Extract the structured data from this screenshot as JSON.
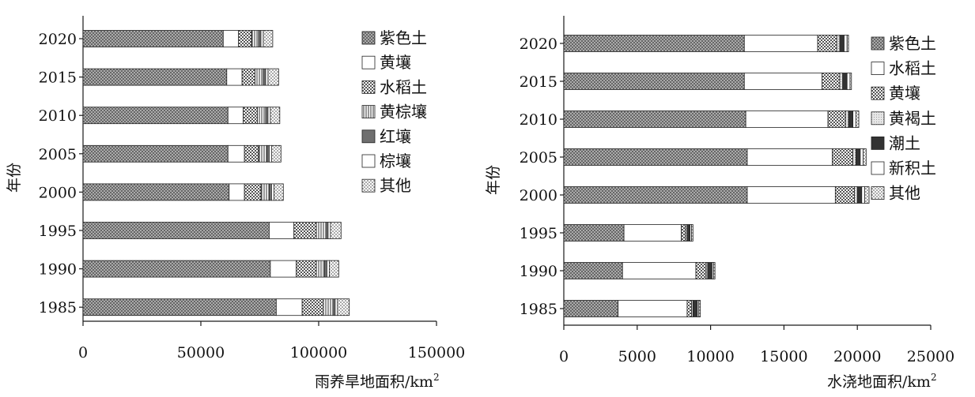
{
  "chart_data": [
    {
      "type": "bar",
      "orientation": "horizontal",
      "stacked": true,
      "categories": [
        "1985",
        "1990",
        "1995",
        "2000",
        "2005",
        "2010",
        "2015",
        "2020"
      ],
      "ylabel": "年份",
      "xlabel": "雨养旱地面积/km²",
      "xlim": [
        0,
        150000
      ],
      "xticks": [
        "0",
        "50000",
        "100000",
        "150000"
      ],
      "legend_position": "right",
      "series": [
        {
          "name": "紫色土",
          "pattern": "crosshatch",
          "values": [
            82000,
            79500,
            79000,
            62000,
            61500,
            61500,
            61000,
            59500
          ]
        },
        {
          "name": "黄壤",
          "pattern": "white",
          "values": [
            11000,
            11000,
            10500,
            6500,
            7000,
            6500,
            6500,
            6500
          ]
        },
        {
          "name": "水稻土",
          "pattern": "checker",
          "values": [
            9000,
            8500,
            9500,
            7000,
            6000,
            6000,
            5500,
            5500
          ]
        },
        {
          "name": "黄棕壤",
          "pattern": "vertical-lines",
          "values": [
            4000,
            3500,
            4000,
            3500,
            3500,
            3500,
            3500,
            3000
          ]
        },
        {
          "name": "红壤",
          "pattern": "solid-gray",
          "values": [
            1000,
            1000,
            1000,
            1000,
            1000,
            1000,
            1000,
            1000
          ]
        },
        {
          "name": "棕壤",
          "pattern": "white",
          "values": [
            1000,
            1000,
            1000,
            1000,
            1000,
            1000,
            1000,
            1000
          ]
        },
        {
          "name": "其他",
          "pattern": "dots",
          "values": [
            5000,
            4000,
            4500,
            4000,
            4000,
            4000,
            4500,
            4000
          ]
        }
      ]
    },
    {
      "type": "bar",
      "orientation": "horizontal",
      "stacked": true,
      "categories": [
        "1985",
        "1990",
        "1995",
        "2000",
        "2005",
        "2010",
        "2015",
        "2020"
      ],
      "ylabel": "年份",
      "xlabel": "水浇地面积/km²",
      "xlim": [
        0,
        25000
      ],
      "xticks": [
        "0",
        "5000",
        "10000",
        "15000",
        "20000",
        "25000"
      ],
      "legend_position": "right",
      "series": [
        {
          "name": "紫色土",
          "pattern": "crosshatch",
          "values": [
            3700,
            4000,
            4100,
            12500,
            12500,
            12400,
            12300,
            12300
          ]
        },
        {
          "name": "水稻土",
          "pattern": "white",
          "values": [
            4700,
            5000,
            3900,
            6000,
            5800,
            5600,
            5300,
            5000
          ]
        },
        {
          "name": "黄壤",
          "pattern": "checker",
          "values": [
            300,
            700,
            300,
            1300,
            1400,
            1200,
            1200,
            1300
          ]
        },
        {
          "name": "黄褐土",
          "pattern": "stipple",
          "values": [
            100,
            100,
            100,
            200,
            200,
            200,
            200,
            200
          ]
        },
        {
          "name": "潮土",
          "pattern": "solid-dark",
          "values": [
            300,
            300,
            200,
            300,
            300,
            300,
            300,
            300
          ]
        },
        {
          "name": "新积土",
          "pattern": "white",
          "values": [
            100,
            100,
            100,
            200,
            200,
            200,
            200,
            200
          ]
        },
        {
          "name": "其他",
          "pattern": "dots",
          "values": [
            100,
            100,
            100,
            300,
            200,
            200,
            100,
            100
          ]
        }
      ]
    }
  ],
  "colors": {
    "ink": "#1a1a1a",
    "bar_edge": "#222222",
    "solid_gray": "#6f6f6f",
    "solid_dark": "#333333"
  }
}
